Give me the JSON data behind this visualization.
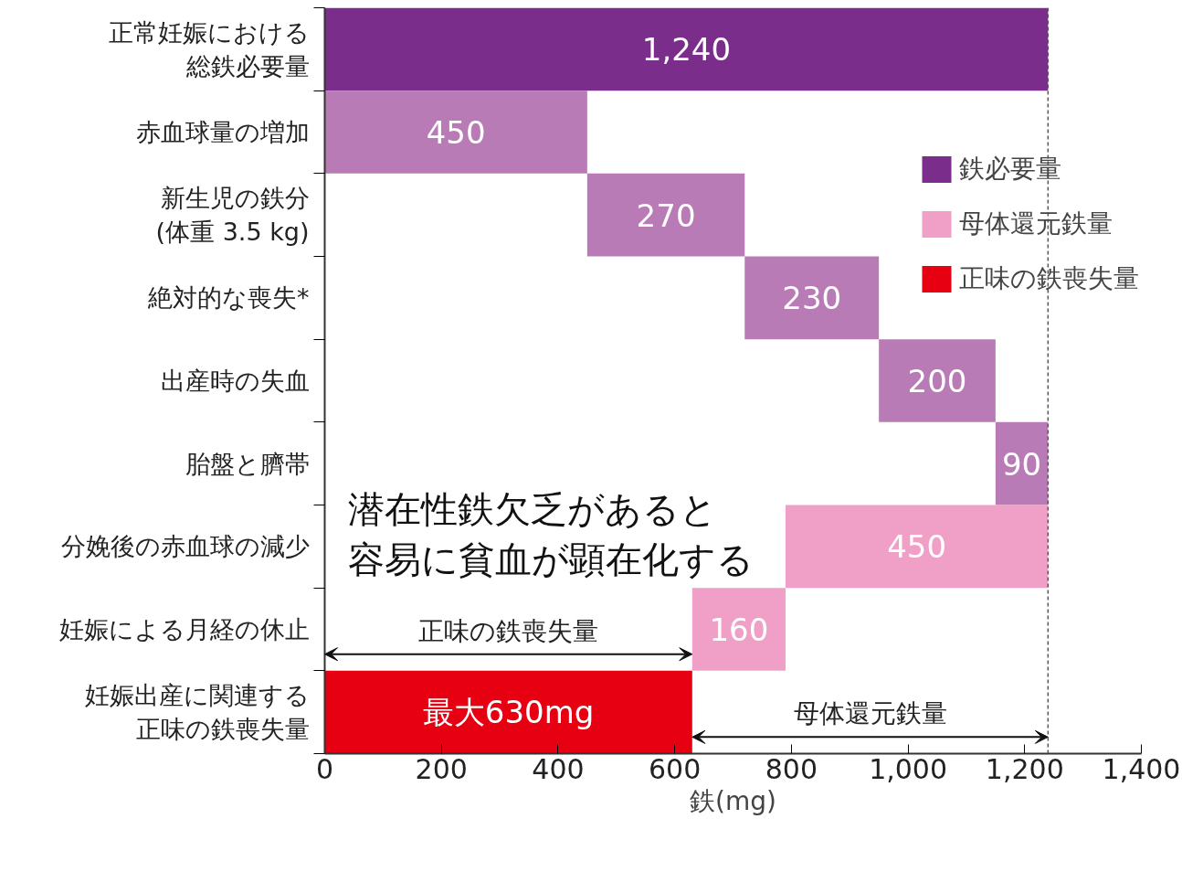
{
  "chart_data": {
    "type": "bar",
    "orientation": "horizontal",
    "categories": [
      "正常妊娠における総鉄必要量",
      "赤血球量の増加",
      "新生児の鉄分(体重 3.5 kg)",
      "絶対的な喪失*",
      "出産時の失血",
      "胎盤と臍帯",
      "分娩後の赤血球の減少",
      "妊娠による月経の休止",
      "妊娠出産に関連する正味の鉄喪失量"
    ],
    "series": [
      {
        "name": "鉄必要量",
        "colors": [
          "#7b2d8b",
          "#b87bb5",
          "#b87bb5",
          "#b87bb5",
          "#b87bb5",
          "#b87bb5",
          null,
          null,
          null
        ],
        "values": [
          1240,
          450,
          270,
          230,
          200,
          90,
          null,
          null,
          null
        ],
        "base": [
          0,
          0,
          450,
          720,
          950,
          1150,
          null,
          null,
          null
        ],
        "value_labels": [
          "1,240",
          "450",
          "270",
          "230",
          "200",
          "90",
          null,
          null,
          null
        ]
      },
      {
        "name": "母体還元鉄量",
        "colors": [
          null,
          null,
          null,
          null,
          null,
          null,
          "#f0a0c6",
          "#f0a0c6",
          null
        ],
        "values": [
          null,
          null,
          null,
          null,
          null,
          null,
          450,
          160,
          null
        ],
        "base": [
          null,
          null,
          null,
          null,
          null,
          null,
          790,
          630,
          null
        ],
        "value_labels": [
          null,
          null,
          null,
          null,
          null,
          null,
          "450",
          "160",
          null
        ]
      },
      {
        "name": "正味の鉄喪失量",
        "colors": [
          null,
          null,
          null,
          null,
          null,
          null,
          null,
          null,
          "#e60012"
        ],
        "values": [
          null,
          null,
          null,
          null,
          null,
          null,
          null,
          null,
          630
        ],
        "base": [
          null,
          null,
          null,
          null,
          null,
          null,
          null,
          null,
          0
        ],
        "value_labels": [
          null,
          null,
          null,
          null,
          null,
          null,
          null,
          null,
          "最大630mg"
        ]
      }
    ],
    "xlim": [
      0,
      1400
    ],
    "xticks": [
      0,
      200,
      400,
      600,
      800,
      {
        "value": 1000,
        "label": "1,000"
      },
      {
        "value": 1200,
        "label": "1,200"
      },
      {
        "value": 1400,
        "label": "1,400"
      }
    ],
    "xlabel": "鉄(mg)",
    "ref_lines": [
      {
        "axis": "x",
        "value": 1240,
        "color": "#555555",
        "line_style": "dashed"
      }
    ],
    "annotations": [
      "潜在性鉄欠乏があると容易に貧血が顕在化する",
      "正味の鉄喪失量",
      "母体還元鉄量"
    ],
    "legend": "right",
    "grid": false
  }
}
